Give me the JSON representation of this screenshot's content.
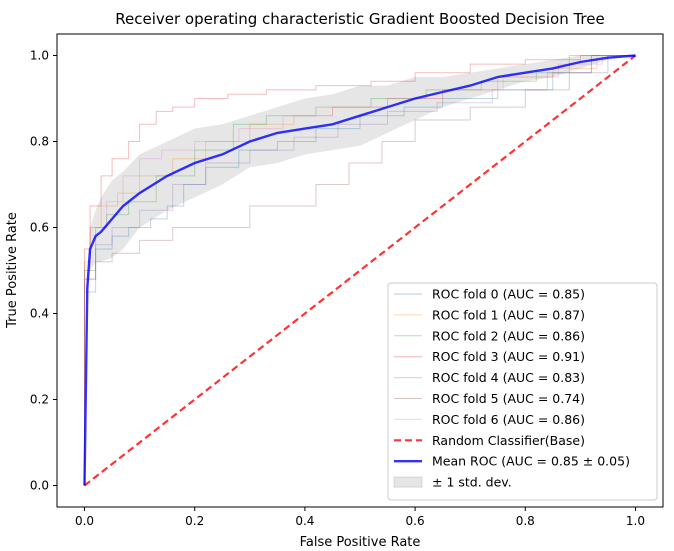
{
  "chart_data": {
    "type": "line",
    "title": "Receiver operating characteristic Gradient Boosted Decision Tree",
    "xlabel": "False Positive Rate",
    "ylabel": "True Positive Rate",
    "xlim": [
      -0.05,
      1.05
    ],
    "ylim": [
      -0.05,
      1.05
    ],
    "xticks": [
      "0.0",
      "0.2",
      "0.4",
      "0.6",
      "0.8",
      "1.0"
    ],
    "yticks": [
      "0.0",
      "0.2",
      "0.4",
      "0.6",
      "0.8",
      "1.0"
    ],
    "legend_position": "lower-right",
    "grid": false,
    "series": [
      {
        "name": "ROC fold 0 (AUC = 0.85)",
        "color": "#1f77b4",
        "style": "step-thin",
        "x": [
          0,
          0,
          0.02,
          0.02,
          0.05,
          0.05,
          0.08,
          0.08,
          0.12,
          0.12,
          0.15,
          0.15,
          0.18,
          0.18,
          0.22,
          0.22,
          0.28,
          0.28,
          0.35,
          0.35,
          0.42,
          0.42,
          0.5,
          0.5,
          0.58,
          0.58,
          0.65,
          0.65,
          0.75,
          0.75,
          0.85,
          0.85,
          0.92,
          0.92,
          1
        ],
        "y": [
          0,
          0.45,
          0.45,
          0.55,
          0.55,
          0.58,
          0.58,
          0.6,
          0.6,
          0.62,
          0.62,
          0.65,
          0.65,
          0.7,
          0.7,
          0.74,
          0.74,
          0.78,
          0.78,
          0.8,
          0.8,
          0.83,
          0.83,
          0.86,
          0.86,
          0.88,
          0.88,
          0.9,
          0.9,
          0.92,
          0.92,
          0.96,
          0.96,
          1.0,
          1.0
        ]
      },
      {
        "name": "ROC fold 1 (AUC = 0.87)",
        "color": "#ff7f0e",
        "style": "step-thin",
        "x": [
          0,
          0,
          0.01,
          0.01,
          0.03,
          0.03,
          0.06,
          0.06,
          0.1,
          0.1,
          0.16,
          0.16,
          0.22,
          0.22,
          0.3,
          0.3,
          0.38,
          0.38,
          0.45,
          0.45,
          0.55,
          0.55,
          0.65,
          0.65,
          0.75,
          0.75,
          0.85,
          0.85,
          0.93,
          0.93,
          1
        ],
        "y": [
          0,
          0.52,
          0.52,
          0.6,
          0.6,
          0.65,
          0.65,
          0.68,
          0.68,
          0.72,
          0.72,
          0.76,
          0.76,
          0.8,
          0.8,
          0.84,
          0.84,
          0.86,
          0.86,
          0.88,
          0.88,
          0.9,
          0.9,
          0.92,
          0.92,
          0.95,
          0.95,
          0.97,
          0.97,
          1.0,
          1.0
        ]
      },
      {
        "name": "ROC fold 2 (AUC = 0.86)",
        "color": "#2ca02c",
        "style": "step-thin",
        "x": [
          0,
          0,
          0.02,
          0.02,
          0.04,
          0.04,
          0.08,
          0.08,
          0.13,
          0.13,
          0.2,
          0.2,
          0.27,
          0.27,
          0.33,
          0.33,
          0.42,
          0.42,
          0.52,
          0.52,
          0.62,
          0.62,
          0.72,
          0.72,
          0.82,
          0.82,
          0.88,
          0.88,
          1
        ],
        "y": [
          0,
          0.5,
          0.5,
          0.6,
          0.6,
          0.63,
          0.63,
          0.66,
          0.66,
          0.72,
          0.72,
          0.78,
          0.78,
          0.84,
          0.84,
          0.86,
          0.86,
          0.88,
          0.88,
          0.9,
          0.9,
          0.92,
          0.92,
          0.94,
          0.94,
          0.96,
          0.96,
          1.0,
          1.0
        ]
      },
      {
        "name": "ROC fold 3 (AUC = 0.91)",
        "color": "#d62728",
        "style": "step-thin",
        "x": [
          0,
          0,
          0.01,
          0.01,
          0.03,
          0.03,
          0.05,
          0.05,
          0.08,
          0.08,
          0.1,
          0.1,
          0.13,
          0.13,
          0.16,
          0.16,
          0.2,
          0.2,
          0.26,
          0.26,
          0.33,
          0.33,
          0.42,
          0.42,
          0.52,
          0.52,
          0.6,
          0.6,
          0.7,
          0.7,
          0.8,
          0.8,
          0.9,
          0.9,
          1
        ],
        "y": [
          0,
          0.55,
          0.55,
          0.65,
          0.65,
          0.72,
          0.72,
          0.76,
          0.76,
          0.8,
          0.8,
          0.84,
          0.84,
          0.87,
          0.87,
          0.88,
          0.88,
          0.9,
          0.9,
          0.91,
          0.91,
          0.92,
          0.92,
          0.93,
          0.93,
          0.94,
          0.94,
          0.96,
          0.96,
          0.98,
          0.98,
          0.99,
          0.99,
          1.0,
          1.0
        ]
      },
      {
        "name": "ROC fold 4 (AUC = 0.83)",
        "color": "#9467bd",
        "style": "step-thin",
        "x": [
          0,
          0,
          0.02,
          0.02,
          0.05,
          0.05,
          0.1,
          0.1,
          0.16,
          0.16,
          0.22,
          0.22,
          0.3,
          0.3,
          0.38,
          0.38,
          0.46,
          0.46,
          0.55,
          0.55,
          0.64,
          0.64,
          0.74,
          0.74,
          0.84,
          0.84,
          0.92,
          0.92,
          1
        ],
        "y": [
          0,
          0.48,
          0.48,
          0.56,
          0.56,
          0.6,
          0.6,
          0.64,
          0.64,
          0.7,
          0.7,
          0.75,
          0.75,
          0.78,
          0.78,
          0.81,
          0.81,
          0.84,
          0.84,
          0.87,
          0.87,
          0.89,
          0.89,
          0.92,
          0.92,
          0.96,
          0.96,
          1.0,
          1.0
        ]
      },
      {
        "name": "ROC fold 5 (AUC = 0.74)",
        "color": "#8c564b",
        "style": "step-thin",
        "x": [
          0,
          0,
          0.02,
          0.02,
          0.05,
          0.05,
          0.1,
          0.1,
          0.16,
          0.16,
          0.3,
          0.3,
          0.42,
          0.42,
          0.48,
          0.48,
          0.54,
          0.54,
          0.6,
          0.6,
          0.7,
          0.7,
          0.8,
          0.8,
          0.88,
          0.88,
          0.95,
          0.95,
          1
        ],
        "y": [
          0,
          0.48,
          0.48,
          0.52,
          0.52,
          0.54,
          0.54,
          0.57,
          0.57,
          0.6,
          0.6,
          0.65,
          0.65,
          0.7,
          0.7,
          0.75,
          0.75,
          0.8,
          0.8,
          0.85,
          0.85,
          0.88,
          0.88,
          0.92,
          0.92,
          0.96,
          0.96,
          1.0,
          1.0
        ]
      },
      {
        "name": "ROC fold 6 (AUC = 0.86)",
        "color": "#e377c2",
        "style": "step-thin",
        "x": [
          0,
          0,
          0.01,
          0.01,
          0.04,
          0.04,
          0.07,
          0.07,
          0.1,
          0.1,
          0.14,
          0.14,
          0.2,
          0.2,
          0.28,
          0.28,
          0.36,
          0.36,
          0.45,
          0.45,
          0.55,
          0.55,
          0.65,
          0.65,
          0.76,
          0.76,
          0.86,
          0.86,
          0.94,
          0.94,
          1
        ],
        "y": [
          0,
          0.5,
          0.5,
          0.6,
          0.6,
          0.66,
          0.66,
          0.72,
          0.72,
          0.76,
          0.76,
          0.78,
          0.78,
          0.8,
          0.8,
          0.83,
          0.83,
          0.86,
          0.86,
          0.88,
          0.88,
          0.9,
          0.9,
          0.92,
          0.92,
          0.95,
          0.95,
          0.98,
          0.98,
          1.0,
          1.0
        ]
      },
      {
        "name": "Random Classifier(Base)",
        "color": "#ff0000",
        "style": "dashed",
        "x": [
          0,
          1
        ],
        "y": [
          0,
          1
        ]
      },
      {
        "name": "Mean ROC (AUC = 0.85 ± 0.05)",
        "color": "#0000ff",
        "style": "thick",
        "x": [
          0,
          0.005,
          0.01,
          0.02,
          0.03,
          0.05,
          0.07,
          0.1,
          0.15,
          0.2,
          0.25,
          0.3,
          0.35,
          0.4,
          0.45,
          0.5,
          0.55,
          0.6,
          0.65,
          0.7,
          0.75,
          0.8,
          0.85,
          0.9,
          0.95,
          1.0
        ],
        "y": [
          0,
          0.46,
          0.55,
          0.58,
          0.59,
          0.62,
          0.65,
          0.68,
          0.72,
          0.75,
          0.77,
          0.8,
          0.82,
          0.83,
          0.84,
          0.86,
          0.88,
          0.9,
          0.915,
          0.93,
          0.95,
          0.96,
          0.97,
          0.985,
          0.995,
          1.0
        ]
      }
    ],
    "std_band": {
      "name": "± 1 std. dev.",
      "color": "#808080",
      "x": [
        0,
        0.005,
        0.01,
        0.02,
        0.03,
        0.05,
        0.07,
        0.1,
        0.15,
        0.2,
        0.25,
        0.3,
        0.35,
        0.4,
        0.45,
        0.5,
        0.55,
        0.6,
        0.65,
        0.7,
        0.75,
        0.8,
        0.85,
        0.9,
        0.95,
        1.0
      ],
      "upper": [
        0,
        0.5,
        0.6,
        0.64,
        0.67,
        0.71,
        0.73,
        0.77,
        0.8,
        0.83,
        0.84,
        0.86,
        0.88,
        0.9,
        0.91,
        0.93,
        0.93,
        0.95,
        0.95,
        0.96,
        0.97,
        0.98,
        0.99,
        1.0,
        1.0,
        1.0
      ],
      "lower": [
        0,
        0.42,
        0.5,
        0.52,
        0.52,
        0.53,
        0.55,
        0.6,
        0.64,
        0.67,
        0.7,
        0.74,
        0.75,
        0.77,
        0.78,
        0.79,
        0.82,
        0.85,
        0.88,
        0.9,
        0.92,
        0.94,
        0.95,
        0.97,
        0.99,
        1.0
      ]
    }
  }
}
